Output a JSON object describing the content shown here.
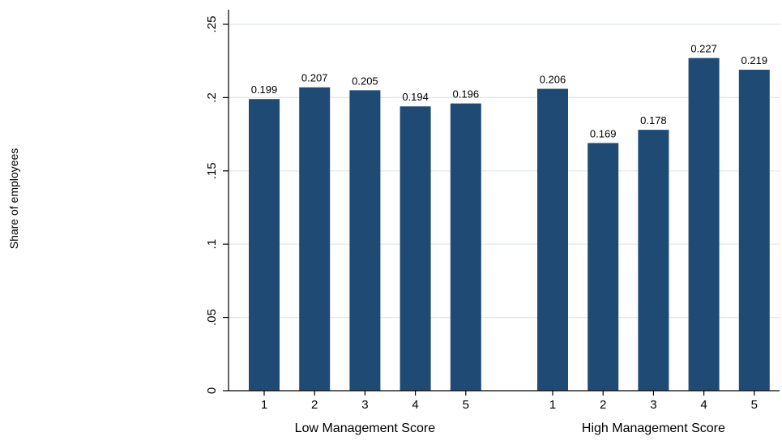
{
  "chart_data": {
    "type": "bar",
    "ylabel": "Share of employees",
    "ylim": [
      0,
      0.25
    ],
    "yticks": [
      0,
      0.05,
      0.1,
      0.15,
      0.2,
      0.25
    ],
    "ytick_labels": [
      "0",
      ".05",
      ".1",
      ".15",
      ".2",
      ".25"
    ],
    "grid": true,
    "bar_color": "#1f4a73",
    "grid_color": "#dde6ee",
    "groups": [
      {
        "label": "Low Management Score",
        "categories": [
          "1",
          "2",
          "3",
          "4",
          "5"
        ],
        "values": [
          0.199,
          0.207,
          0.205,
          0.194,
          0.196
        ],
        "value_labels": [
          "0.199",
          "0.207",
          "0.205",
          "0.194",
          "0.196"
        ]
      },
      {
        "label": "High Management Score",
        "categories": [
          "1",
          "2",
          "3",
          "4",
          "5"
        ],
        "values": [
          0.206,
          0.169,
          0.178,
          0.227,
          0.219
        ],
        "value_labels": [
          "0.206",
          "0.169",
          "0.178",
          "0.227",
          "0.219"
        ]
      }
    ]
  }
}
